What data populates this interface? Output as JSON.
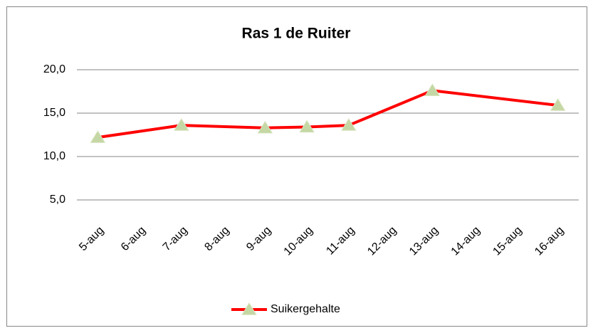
{
  "chart_data": {
    "type": "line",
    "title": "Ras 1 de Ruiter",
    "categories": [
      "5-aug",
      "6-aug",
      "7-aug",
      "8-aug",
      "9-aug",
      "10-aug",
      "11-aug",
      "12-aug",
      "13-aug",
      "14-aug",
      "15-aug",
      "16-aug"
    ],
    "series": [
      {
        "name": "Suikergehalte",
        "color": "#ff0000",
        "marker_color": "#c4d7a4",
        "x": [
          "5-aug",
          "7-aug",
          "9-aug",
          "10-aug",
          "11-aug",
          "13-aug",
          "16-aug"
        ],
        "values": [
          12.2,
          13.6,
          13.3,
          13.4,
          13.6,
          17.6,
          15.9
        ]
      }
    ],
    "ylim": [
      2.5,
      20
    ],
    "yticks": [
      {
        "value": 5,
        "label": "5,0"
      },
      {
        "value": 10,
        "label": "10,0"
      },
      {
        "value": 15,
        "label": "15,0"
      },
      {
        "value": 20,
        "label": "20,0"
      }
    ],
    "grid": true,
    "legend": "bottom"
  }
}
